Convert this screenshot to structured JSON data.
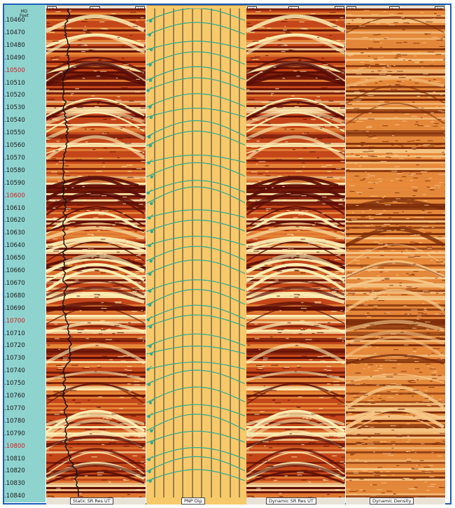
{
  "depth_header": {
    "line1": "MD",
    "line2": "Feet"
  },
  "depth_labels": [
    ".10460",
    ".10470",
    ".10480",
    ".10490",
    ".10500",
    ".10510",
    ".10520",
    ".10530",
    ".10540",
    ".10550",
    ".10560",
    ".10570",
    ".10580",
    ".10590",
    ".10600",
    ".10610",
    ".10620",
    ".10630",
    ".10640",
    ".10650",
    ".10660",
    ".10670",
    ".10680",
    ".10690",
    ".10700",
    ".10710",
    ".10720",
    ".10730",
    ".10740",
    ".10750",
    ".10760",
    ".10770",
    ".10780",
    ".10790",
    ".10800",
    ".10810",
    ".10820",
    ".10830",
    ".10840"
  ],
  "red_depths": [
    ".10500",
    ".10600",
    ".10700",
    ".10800"
  ],
  "tracks": {
    "static_image": {
      "header_left": "Hi",
      "header_mid": "Lo",
      "header_right": "Hi",
      "footer": "Static SR Res UT"
    },
    "dip_track": {
      "footer": "PNP Dip"
    },
    "dynamic_image": {
      "header_left": "Hi",
      "header_mid": "Lo",
      "header_right": "Hi",
      "footer": "Dynamic SR Res UT"
    },
    "density_image": {
      "header_left": "Hi",
      "header_mid": "Lo",
      "header_right": "Hi",
      "footer": "Dynamic Density"
    }
  },
  "colors": {
    "depth_track": "#8fd3cf",
    "dip_background": "#f7c96a",
    "sinusoid": "#2fa88e",
    "image_dark": "#5a0d05",
    "image_mid": "#c4471a",
    "image_light": "#fdf0b5",
    "frame": "#1b5fb8"
  }
}
